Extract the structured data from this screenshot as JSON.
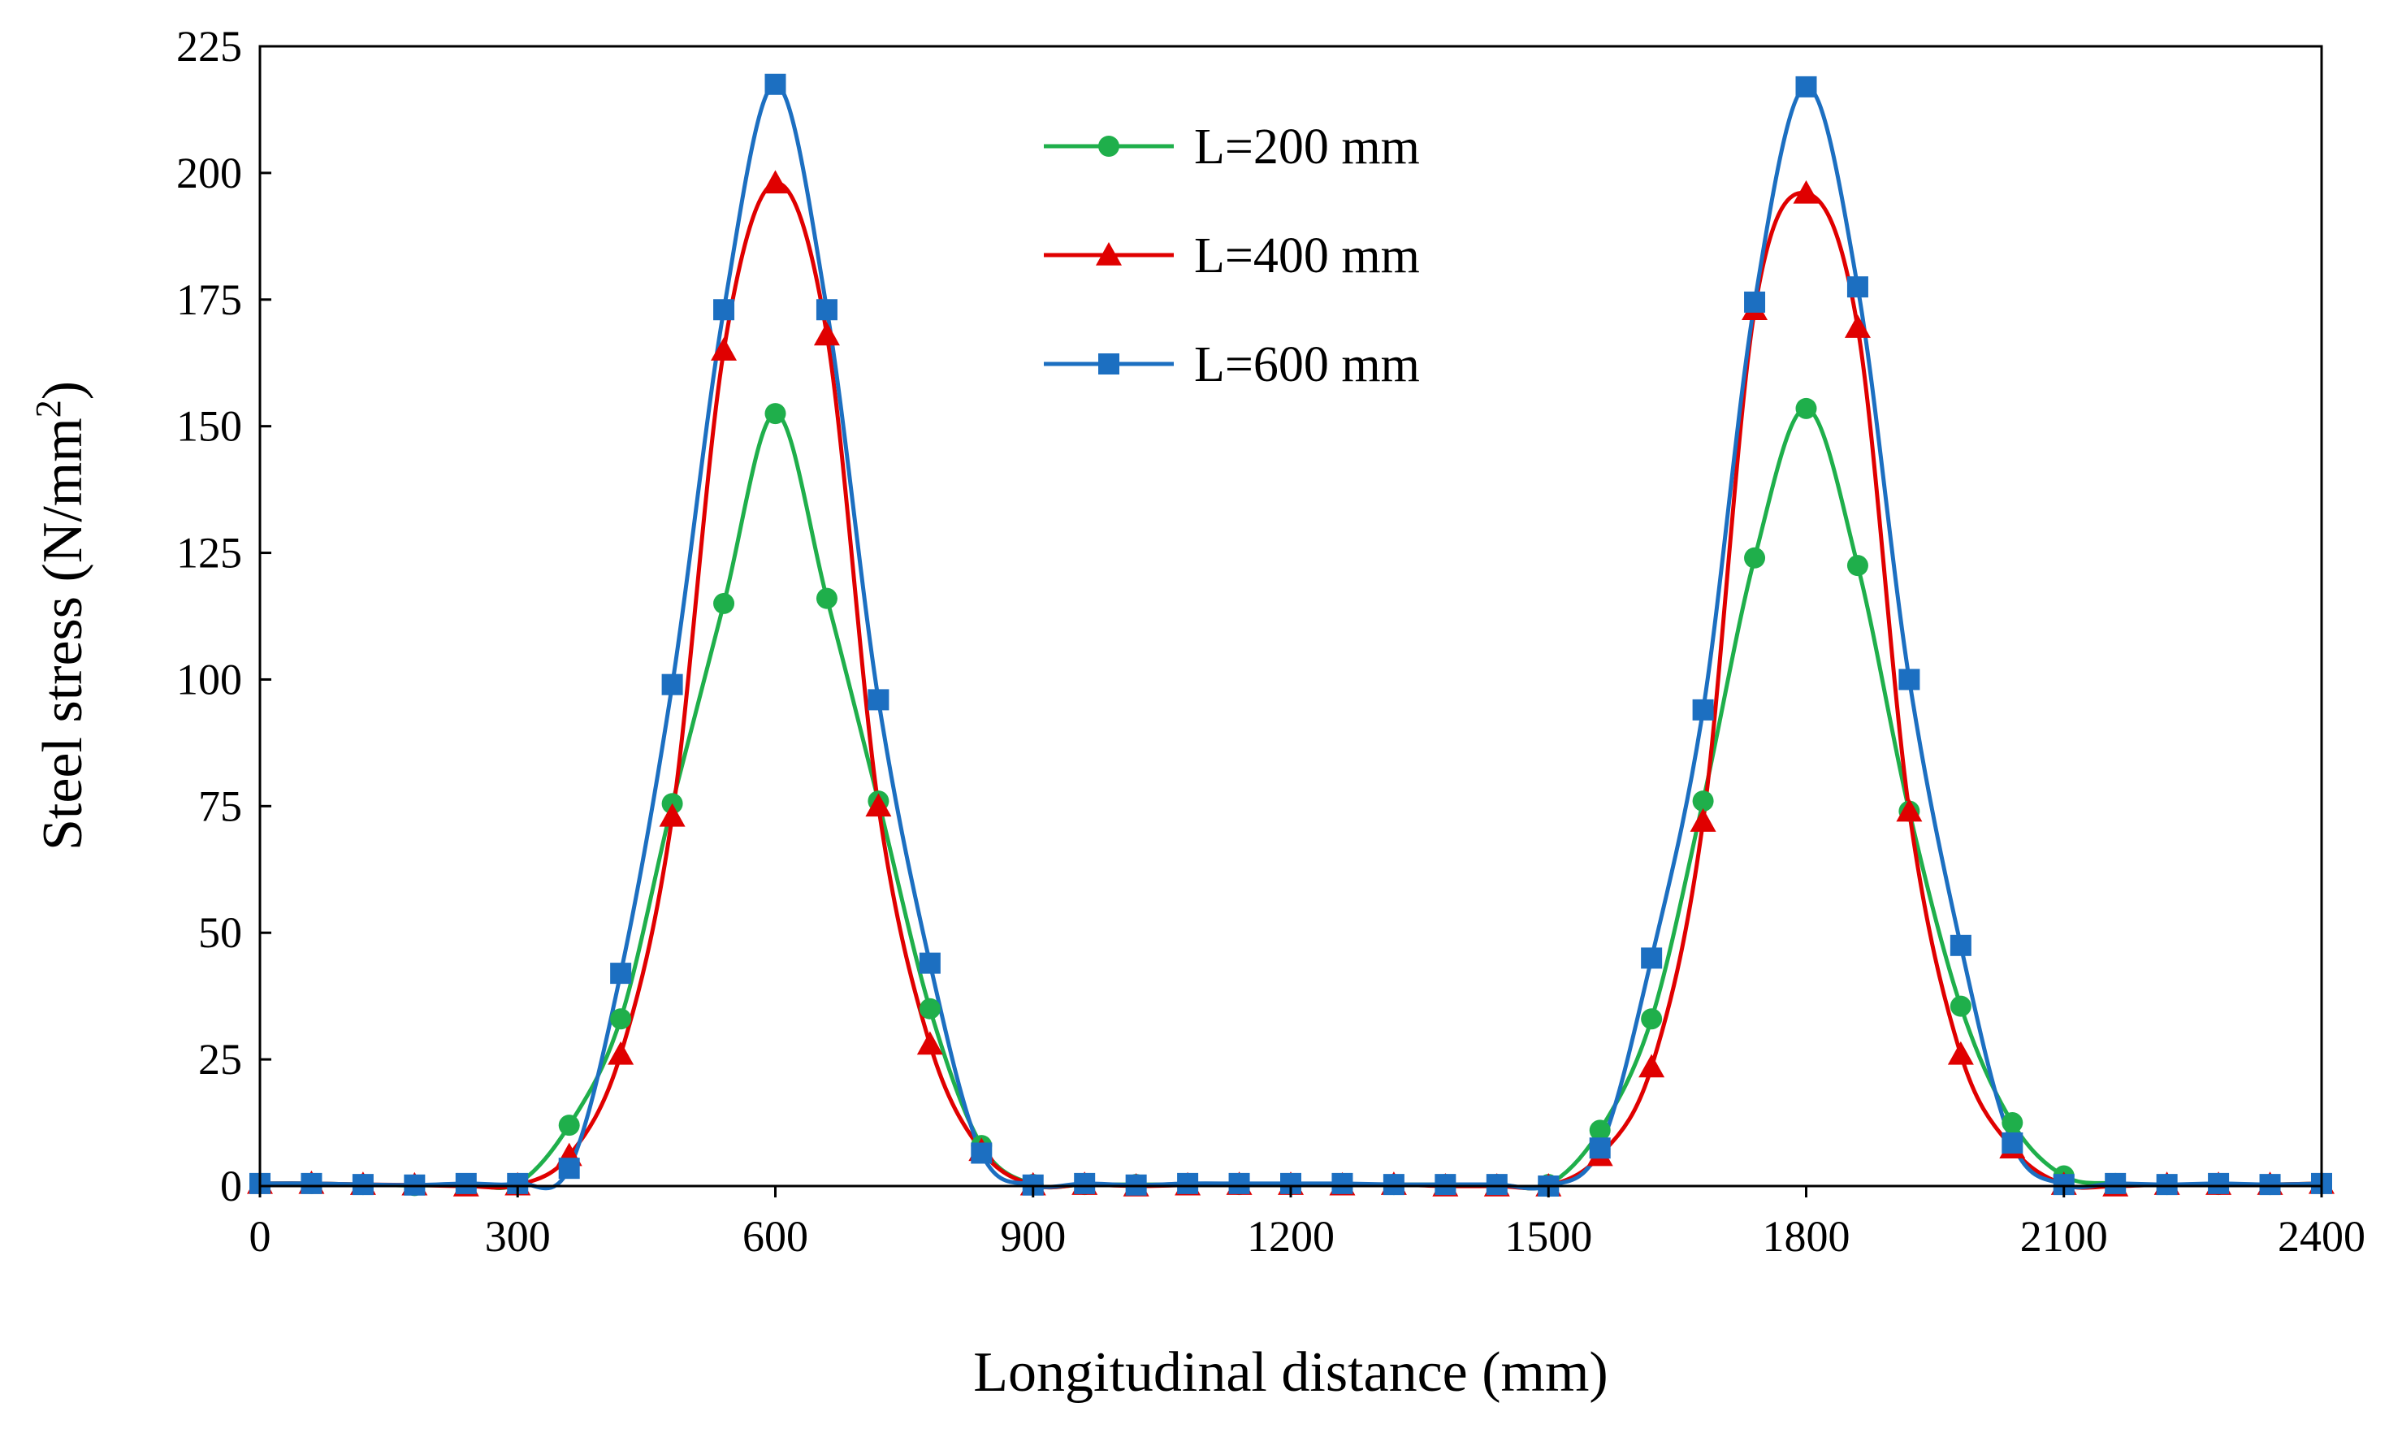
{
  "chart_data": {
    "type": "line",
    "title": "",
    "xlabel": "Longitudinal distance (mm)",
    "ylabel_main": "Steel stress (N/mm",
    "ylabel_sup": "2",
    "ylabel_close": ")",
    "xlim": [
      0,
      2400
    ],
    "ylim": [
      0,
      225
    ],
    "xticks": [
      0,
      300,
      600,
      900,
      1200,
      1500,
      1800,
      2100,
      2400
    ],
    "yticks": [
      0,
      25,
      50,
      75,
      100,
      125,
      150,
      175,
      200,
      225
    ],
    "grid": false,
    "legend_position": "top-center",
    "x": [
      0,
      60,
      120,
      180,
      240,
      300,
      360,
      420,
      480,
      540,
      600,
      660,
      720,
      780,
      840,
      900,
      960,
      1020,
      1080,
      1140,
      1200,
      1260,
      1320,
      1380,
      1440,
      1500,
      1560,
      1620,
      1680,
      1740,
      1800,
      1860,
      1920,
      1980,
      2040,
      2100,
      2160,
      2220,
      2280,
      2340,
      2400
    ],
    "series": [
      {
        "name": "L=200 mm",
        "color": "#1FAF4B",
        "marker": "circle",
        "values": [
          0.5,
          0.5,
          0.3,
          0.1,
          0.3,
          0.5,
          12,
          33,
          75.5,
          115,
          152.5,
          116,
          76,
          35,
          8,
          0.3,
          0.3,
          0.3,
          0.3,
          0.3,
          0.3,
          0.3,
          0.3,
          0.3,
          0.3,
          0.3,
          11,
          33,
          76,
          124,
          153.5,
          122.5,
          74,
          35.5,
          12.5,
          2,
          0.5,
          0.3,
          0.3,
          0.3,
          0.5
        ]
      },
      {
        "name": "L=400 mm",
        "color": "#E00000",
        "marker": "triangle",
        "values": [
          0.5,
          0.5,
          0.3,
          0.2,
          0,
          0.2,
          6,
          26,
          73,
          165,
          198,
          168,
          75,
          28,
          7,
          0.2,
          0.3,
          0,
          0.2,
          0.3,
          0.3,
          0.2,
          0.3,
          0,
          0,
          0,
          6,
          23.5,
          72,
          173,
          196,
          169.5,
          74,
          26,
          7.5,
          0.3,
          0,
          0.3,
          0.3,
          0.3,
          0.5
        ]
      },
      {
        "name": "L=600 mm",
        "color": "#1C6FC1",
        "marker": "square",
        "values": [
          0.5,
          0.5,
          0.3,
          0.2,
          0.5,
          0.5,
          3.5,
          42,
          99,
          173,
          217.5,
          173,
          96,
          44,
          6.5,
          0.2,
          0.5,
          0.2,
          0.5,
          0.5,
          0.5,
          0.5,
          0.3,
          0.3,
          0.3,
          0,
          7.5,
          45,
          94,
          174.5,
          217,
          177.5,
          100,
          47.5,
          8.5,
          0.3,
          0.5,
          0.3,
          0.5,
          0.3,
          0.5
        ]
      }
    ]
  }
}
